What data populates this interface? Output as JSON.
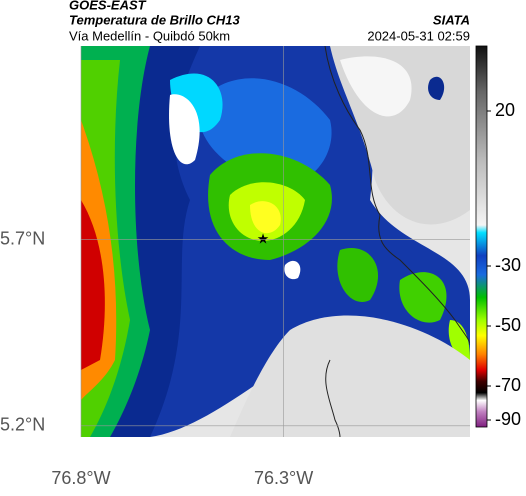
{
  "header": {
    "product": "GOES-EAST",
    "title": "Temperatura de Brillo CH13",
    "source": "SIATA",
    "subtitle": "Vía Medellín - Quibdó 50km",
    "timestamp": "2024-05-31 02:59"
  },
  "map": {
    "lon_lim": [
      -76.8,
      -75.84
    ],
    "lat_lim": [
      5.17,
      6.22
    ],
    "lat_ticks": [
      {
        "value": 5.7,
        "label": "5.7°N"
      },
      {
        "value": 5.2,
        "label": "5.2°N"
      }
    ],
    "lon_ticks": [
      {
        "value": -76.8,
        "label": "76.8°W"
      },
      {
        "value": -76.3,
        "label": "76.3°W"
      }
    ]
  },
  "colorbar": {
    "ticks": [
      20,
      -30,
      -50,
      -70,
      -90
    ]
  }
}
